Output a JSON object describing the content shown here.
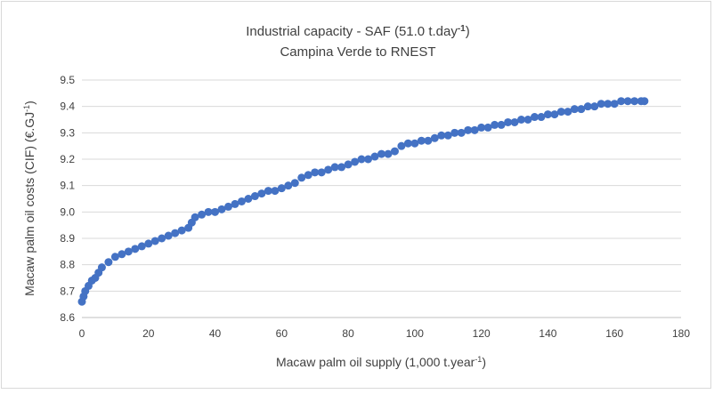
{
  "chart_data": {
    "type": "scatter",
    "title_line1_main": "Industrial capacity - SAF (51.0 t.day",
    "title_line1_sup": "-1",
    "title_line1_end": ")",
    "title_line2": "Campina Verde to RNEST",
    "xlabel_main": "Macaw palm oil supply (1,000 t.year",
    "xlabel_sup": "-1",
    "xlabel_end": ")",
    "ylabel_main": "Macaw palm oil costs (CIF) (€.GJ",
    "ylabel_sup": "-1",
    "ylabel_end": ")",
    "xlim": [
      0,
      180
    ],
    "ylim": [
      8.6,
      9.5
    ],
    "xticks": [
      "0",
      "20",
      "40",
      "60",
      "80",
      "100",
      "120",
      "140",
      "160",
      "180"
    ],
    "yticks": [
      "8.6",
      "8.7",
      "8.8",
      "8.9",
      "9.0",
      "9.1",
      "9.2",
      "9.3",
      "9.4",
      "9.5"
    ],
    "grid": "horizontal",
    "legend": "none",
    "marker_color": "#4472c4",
    "series": [
      {
        "points": [
          [
            0,
            8.66
          ],
          [
            0.5,
            8.68
          ],
          [
            1,
            8.7
          ],
          [
            2,
            8.72
          ],
          [
            3,
            8.74
          ],
          [
            4,
            8.75
          ],
          [
            5,
            8.77
          ],
          [
            6,
            8.79
          ],
          [
            8,
            8.81
          ],
          [
            10,
            8.83
          ],
          [
            12,
            8.84
          ],
          [
            14,
            8.85
          ],
          [
            16,
            8.86
          ],
          [
            18,
            8.87
          ],
          [
            20,
            8.88
          ],
          [
            22,
            8.89
          ],
          [
            24,
            8.9
          ],
          [
            26,
            8.91
          ],
          [
            28,
            8.92
          ],
          [
            30,
            8.93
          ],
          [
            32,
            8.94
          ],
          [
            33,
            8.96
          ],
          [
            34,
            8.98
          ],
          [
            36,
            8.99
          ],
          [
            38,
            9.0
          ],
          [
            40,
            9.0
          ],
          [
            42,
            9.01
          ],
          [
            44,
            9.02
          ],
          [
            46,
            9.03
          ],
          [
            48,
            9.04
          ],
          [
            50,
            9.05
          ],
          [
            52,
            9.06
          ],
          [
            54,
            9.07
          ],
          [
            56,
            9.08
          ],
          [
            58,
            9.08
          ],
          [
            60,
            9.09
          ],
          [
            62,
            9.1
          ],
          [
            64,
            9.11
          ],
          [
            66,
            9.13
          ],
          [
            68,
            9.14
          ],
          [
            70,
            9.15
          ],
          [
            72,
            9.15
          ],
          [
            74,
            9.16
          ],
          [
            76,
            9.17
          ],
          [
            78,
            9.17
          ],
          [
            80,
            9.18
          ],
          [
            82,
            9.19
          ],
          [
            84,
            9.2
          ],
          [
            86,
            9.2
          ],
          [
            88,
            9.21
          ],
          [
            90,
            9.22
          ],
          [
            92,
            9.22
          ],
          [
            94,
            9.23
          ],
          [
            96,
            9.25
          ],
          [
            98,
            9.26
          ],
          [
            100,
            9.26
          ],
          [
            102,
            9.27
          ],
          [
            104,
            9.27
          ],
          [
            106,
            9.28
          ],
          [
            108,
            9.29
          ],
          [
            110,
            9.29
          ],
          [
            112,
            9.3
          ],
          [
            114,
            9.3
          ],
          [
            116,
            9.31
          ],
          [
            118,
            9.31
          ],
          [
            120,
            9.32
          ],
          [
            122,
            9.32
          ],
          [
            124,
            9.33
          ],
          [
            126,
            9.33
          ],
          [
            128,
            9.34
          ],
          [
            130,
            9.34
          ],
          [
            132,
            9.35
          ],
          [
            134,
            9.35
          ],
          [
            136,
            9.36
          ],
          [
            138,
            9.36
          ],
          [
            140,
            9.37
          ],
          [
            142,
            9.37
          ],
          [
            144,
            9.38
          ],
          [
            146,
            9.38
          ],
          [
            148,
            9.39
          ],
          [
            150,
            9.39
          ],
          [
            152,
            9.4
          ],
          [
            154,
            9.4
          ],
          [
            156,
            9.41
          ],
          [
            158,
            9.41
          ],
          [
            160,
            9.41
          ],
          [
            162,
            9.42
          ],
          [
            164,
            9.42
          ],
          [
            166,
            9.42
          ],
          [
            168,
            9.42
          ],
          [
            169,
            9.42
          ]
        ]
      }
    ]
  }
}
